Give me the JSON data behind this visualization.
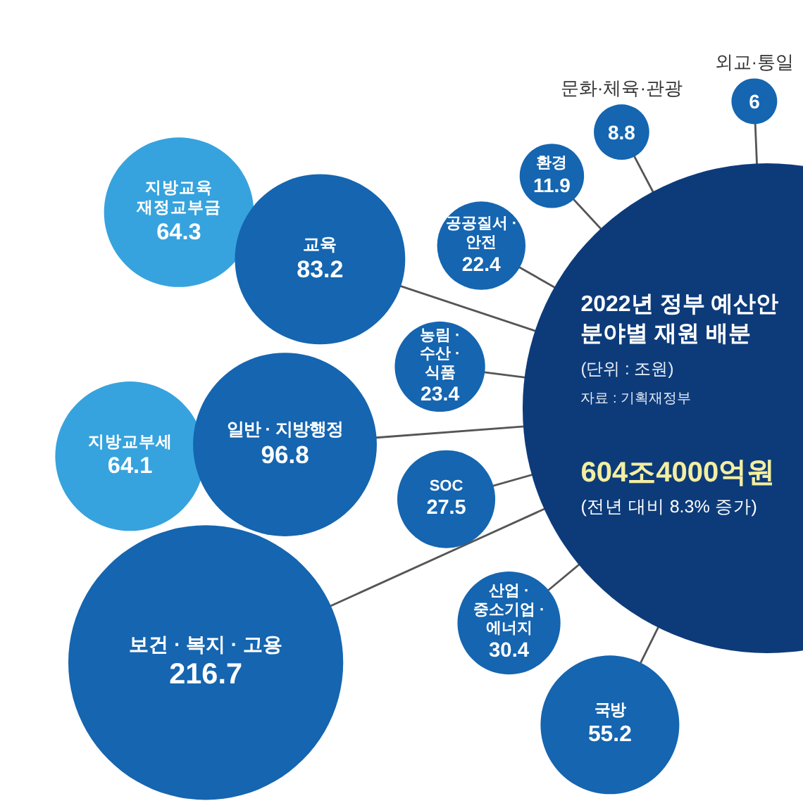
{
  "chart_data": {
    "type": "other",
    "title": "2022년 정부 예산안 분야별 재원 배분",
    "subtitle": "(단위 : 조원)",
    "annotations": [
      "자료 : 기획재정부",
      "604조4000억원",
      "(전년 대비 8.3% 증가)"
    ],
    "categories": [
      "외교·통일",
      "문화·체육·관광",
      "환경",
      "공공질서 · 안전",
      "지방교육재정교부금",
      "교육",
      "농림 · 수산 · 식품",
      "지방교부세",
      "일반 · 지방행정",
      "SOC",
      "보건 · 복지 · 고용",
      "산업 · 중소기업 · 에너지",
      "국방"
    ],
    "series": [
      {
        "color": "#1565b0",
        "values": [
          6,
          8.8,
          11.9,
          22.4,
          null,
          83.2,
          23.4,
          null,
          96.8,
          27.5,
          216.7,
          30.4,
          55.2
        ]
      },
      {
        "color": "#36a3de",
        "values": [
          null,
          null,
          null,
          null,
          64.3,
          null,
          null,
          64.1,
          null,
          null,
          null,
          null,
          null
        ]
      }
    ],
    "data_labels": true
  }
}
